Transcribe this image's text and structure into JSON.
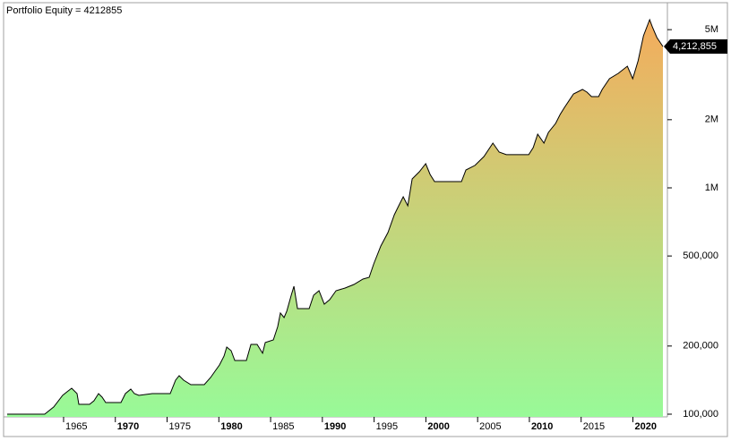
{
  "chart_data": {
    "type": "area",
    "title": "Portfolio Equity = 4212855",
    "log_scale": true,
    "line_color": "#000000",
    "fill_colors": {
      "bottom": "#98fa98",
      "top": "#f4ac5c"
    },
    "xlim": [
      1959.55,
      2022.9
    ],
    "xticks": [
      1965,
      1970,
      1975,
      1980,
      1985,
      1990,
      1995,
      2000,
      2005,
      2010,
      2015,
      2020
    ],
    "ylim": [
      97300,
      6460000
    ],
    "yticks": [
      {
        "value": 100000,
        "label": "100,000"
      },
      {
        "value": 200000,
        "label": "200,000"
      },
      {
        "value": 500000,
        "label": "500,000"
      },
      {
        "value": 1000000,
        "label": "1M"
      },
      {
        "value": 2000000,
        "label": "2M"
      },
      {
        "value": 5000000,
        "label": "5M"
      }
    ],
    "last_value_label": "4,212,855",
    "x": [
      1959.55,
      1963.18,
      1964.05,
      1964.91,
      1965.35,
      1965.78,
      1966.3,
      1966.47,
      1967.51,
      1967.94,
      1968.38,
      1968.72,
      1969.07,
      1970.54,
      1970.97,
      1971.49,
      1971.84,
      1972.27,
      1973.57,
      1975.3,
      1975.82,
      1976.17,
      1976.6,
      1977.29,
      1978.59,
      1979.2,
      1979.63,
      1980.06,
      1980.5,
      1980.76,
      1981.19,
      1981.54,
      1982.66,
      1983.1,
      1983.7,
      1984.22,
      1984.48,
      1985.26,
      1985.69,
      1985.95,
      1986.3,
      1986.56,
      1986.99,
      1987.25,
      1987.6,
      1988.29,
      1988.72,
      1989.16,
      1989.68,
      1990.19,
      1990.71,
      1991.32,
      1992.19,
      1993.05,
      1993.92,
      1994.52,
      1994.96,
      1995.65,
      1996.34,
      1996.95,
      1997.38,
      1997.81,
      1998.25,
      1998.68,
      1999.37,
      1999.98,
      2000.41,
      2000.84,
      2001.71,
      2003.44,
      2003.87,
      2004.74,
      2005.61,
      2006.47,
      2007.08,
      2007.77,
      2008.64,
      2009.94,
      2010.37,
      2010.8,
      2011.41,
      2011.84,
      2012.53,
      2012.97,
      2013.4,
      2014.26,
      2015.13,
      2015.56,
      2016.0,
      2016.69,
      2017.03,
      2017.73,
      2018.59,
      2019.46,
      2019.98,
      2020.5,
      2021.02,
      2021.62,
      2021.88,
      2022.32,
      2022.9
    ],
    "series": [
      {
        "name": "Portfolio Equity",
        "values": [
          100000,
          100000,
          107600,
          121000,
          125600,
          130200,
          123300,
          110500,
          110500,
          114600,
          123300,
          118900,
          112600,
          112600,
          123300,
          129000,
          123300,
          121000,
          123300,
          123300,
          141300,
          147900,
          141300,
          135000,
          135000,
          145200,
          154800,
          165000,
          180700,
          197900,
          190800,
          172700,
          172700,
          203400,
          203400,
          185800,
          207200,
          212900,
          243800,
          279800,
          267300,
          284900,
          335600,
          367500,
          292700,
          292700,
          292700,
          335600,
          351200,
          306300,
          320600,
          351200,
          360900,
          374100,
          395300,
          402500,
          461300,
          553400,
          634700,
          761000,
          833700,
          912900,
          833700,
          1095000,
          1178000,
          1279000,
          1146000,
          1066000,
          1066000,
          1066000,
          1200000,
          1256000,
          1375000,
          1576000,
          1439000,
          1401000,
          1401000,
          1401000,
          1506000,
          1727000,
          1576000,
          1758000,
          1926000,
          2110000,
          2268000,
          2600000,
          2722000,
          2648000,
          2530000,
          2530000,
          2722000,
          3034000,
          3206000,
          3447000,
          3034000,
          3641000,
          4697000,
          5534000,
          5141000,
          4613000,
          4212855
        ]
      }
    ]
  }
}
